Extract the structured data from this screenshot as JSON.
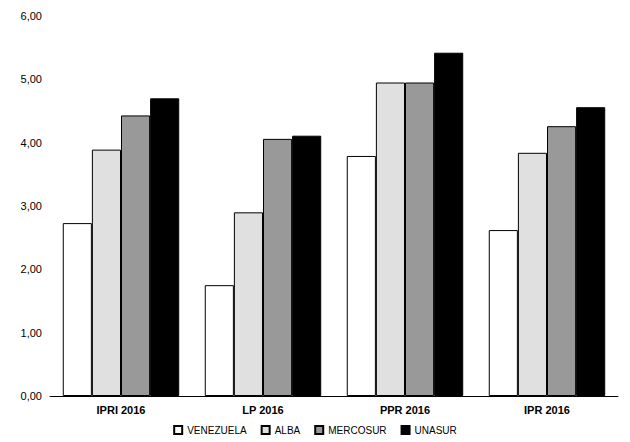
{
  "chart_data": {
    "type": "bar",
    "categories": [
      "IPRI 2016",
      "LP 2016",
      "PPR 2016",
      "IPR 2016"
    ],
    "series": [
      {
        "name": "VENEZUELA",
        "color": "#ffffff",
        "values": [
          2.73,
          1.75,
          3.79,
          2.62
        ]
      },
      {
        "name": "ALBA",
        "color": "#e0e0e0",
        "values": [
          3.89,
          2.9,
          4.95,
          3.84
        ]
      },
      {
        "name": "MERCOSUR",
        "color": "#999999",
        "values": [
          4.43,
          4.06,
          4.95,
          4.26
        ]
      },
      {
        "name": "UNASUR",
        "color": "#000000",
        "values": [
          4.7,
          4.11,
          5.42,
          4.56
        ]
      }
    ],
    "ylim": [
      0,
      6
    ],
    "yticks": [
      {
        "value": 0,
        "label": "0,00"
      },
      {
        "value": 1,
        "label": "1,00"
      },
      {
        "value": 2,
        "label": "2,00"
      },
      {
        "value": 3,
        "label": "3,00"
      },
      {
        "value": 4,
        "label": "4,00"
      },
      {
        "value": 5,
        "label": "5,00"
      },
      {
        "value": 6,
        "label": "6,00"
      }
    ],
    "grid": false,
    "legend": "bottom"
  }
}
